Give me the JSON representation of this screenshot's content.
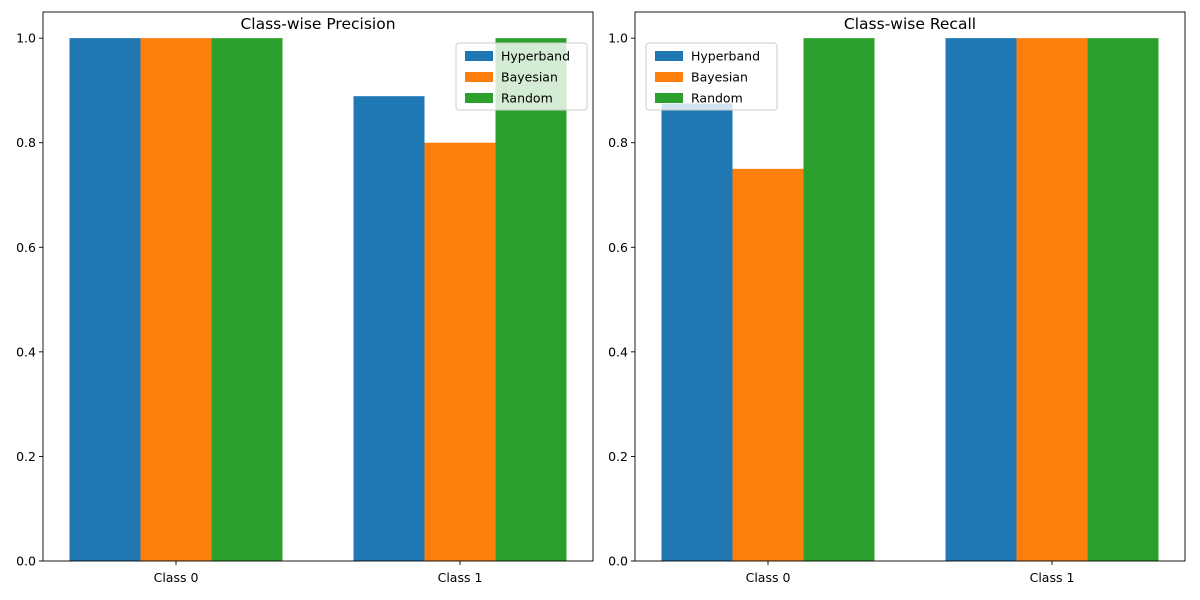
{
  "chart_data": [
    {
      "type": "bar",
      "title": "Class-wise Precision",
      "xlabel": "",
      "ylabel": "",
      "categories": [
        "Class 0",
        "Class 1"
      ],
      "series": [
        {
          "name": "Hyperband",
          "color": "#1f77b4",
          "values": [
            1.0,
            0.889
          ]
        },
        {
          "name": "Bayesian",
          "color": "#ff7f0e",
          "values": [
            1.0,
            0.8
          ]
        },
        {
          "name": "Random",
          "color": "#2ca02c",
          "values": [
            1.0,
            1.0
          ]
        }
      ],
      "ylim": [
        0,
        1.05
      ],
      "yticks": [
        0.0,
        0.2,
        0.4,
        0.6,
        0.8,
        1.0
      ],
      "ytick_labels": [
        "0.0",
        "0.2",
        "0.4",
        "0.6",
        "0.8",
        "1.0"
      ],
      "legend": "top-right",
      "grid": false
    },
    {
      "type": "bar",
      "title": "Class-wise Recall",
      "xlabel": "",
      "ylabel": "",
      "categories": [
        "Class 0",
        "Class 1"
      ],
      "series": [
        {
          "name": "Hyperband",
          "color": "#1f77b4",
          "values": [
            0.875,
            1.0
          ]
        },
        {
          "name": "Bayesian",
          "color": "#ff7f0e",
          "values": [
            0.75,
            1.0
          ]
        },
        {
          "name": "Random",
          "color": "#2ca02c",
          "values": [
            1.0,
            1.0
          ]
        }
      ],
      "ylim": [
        0,
        1.05
      ],
      "yticks": [
        0.0,
        0.2,
        0.4,
        0.6,
        0.8,
        1.0
      ],
      "ytick_labels": [
        "0.0",
        "0.2",
        "0.4",
        "0.6",
        "0.8",
        "1.0"
      ],
      "legend": "top-left",
      "grid": false
    }
  ]
}
